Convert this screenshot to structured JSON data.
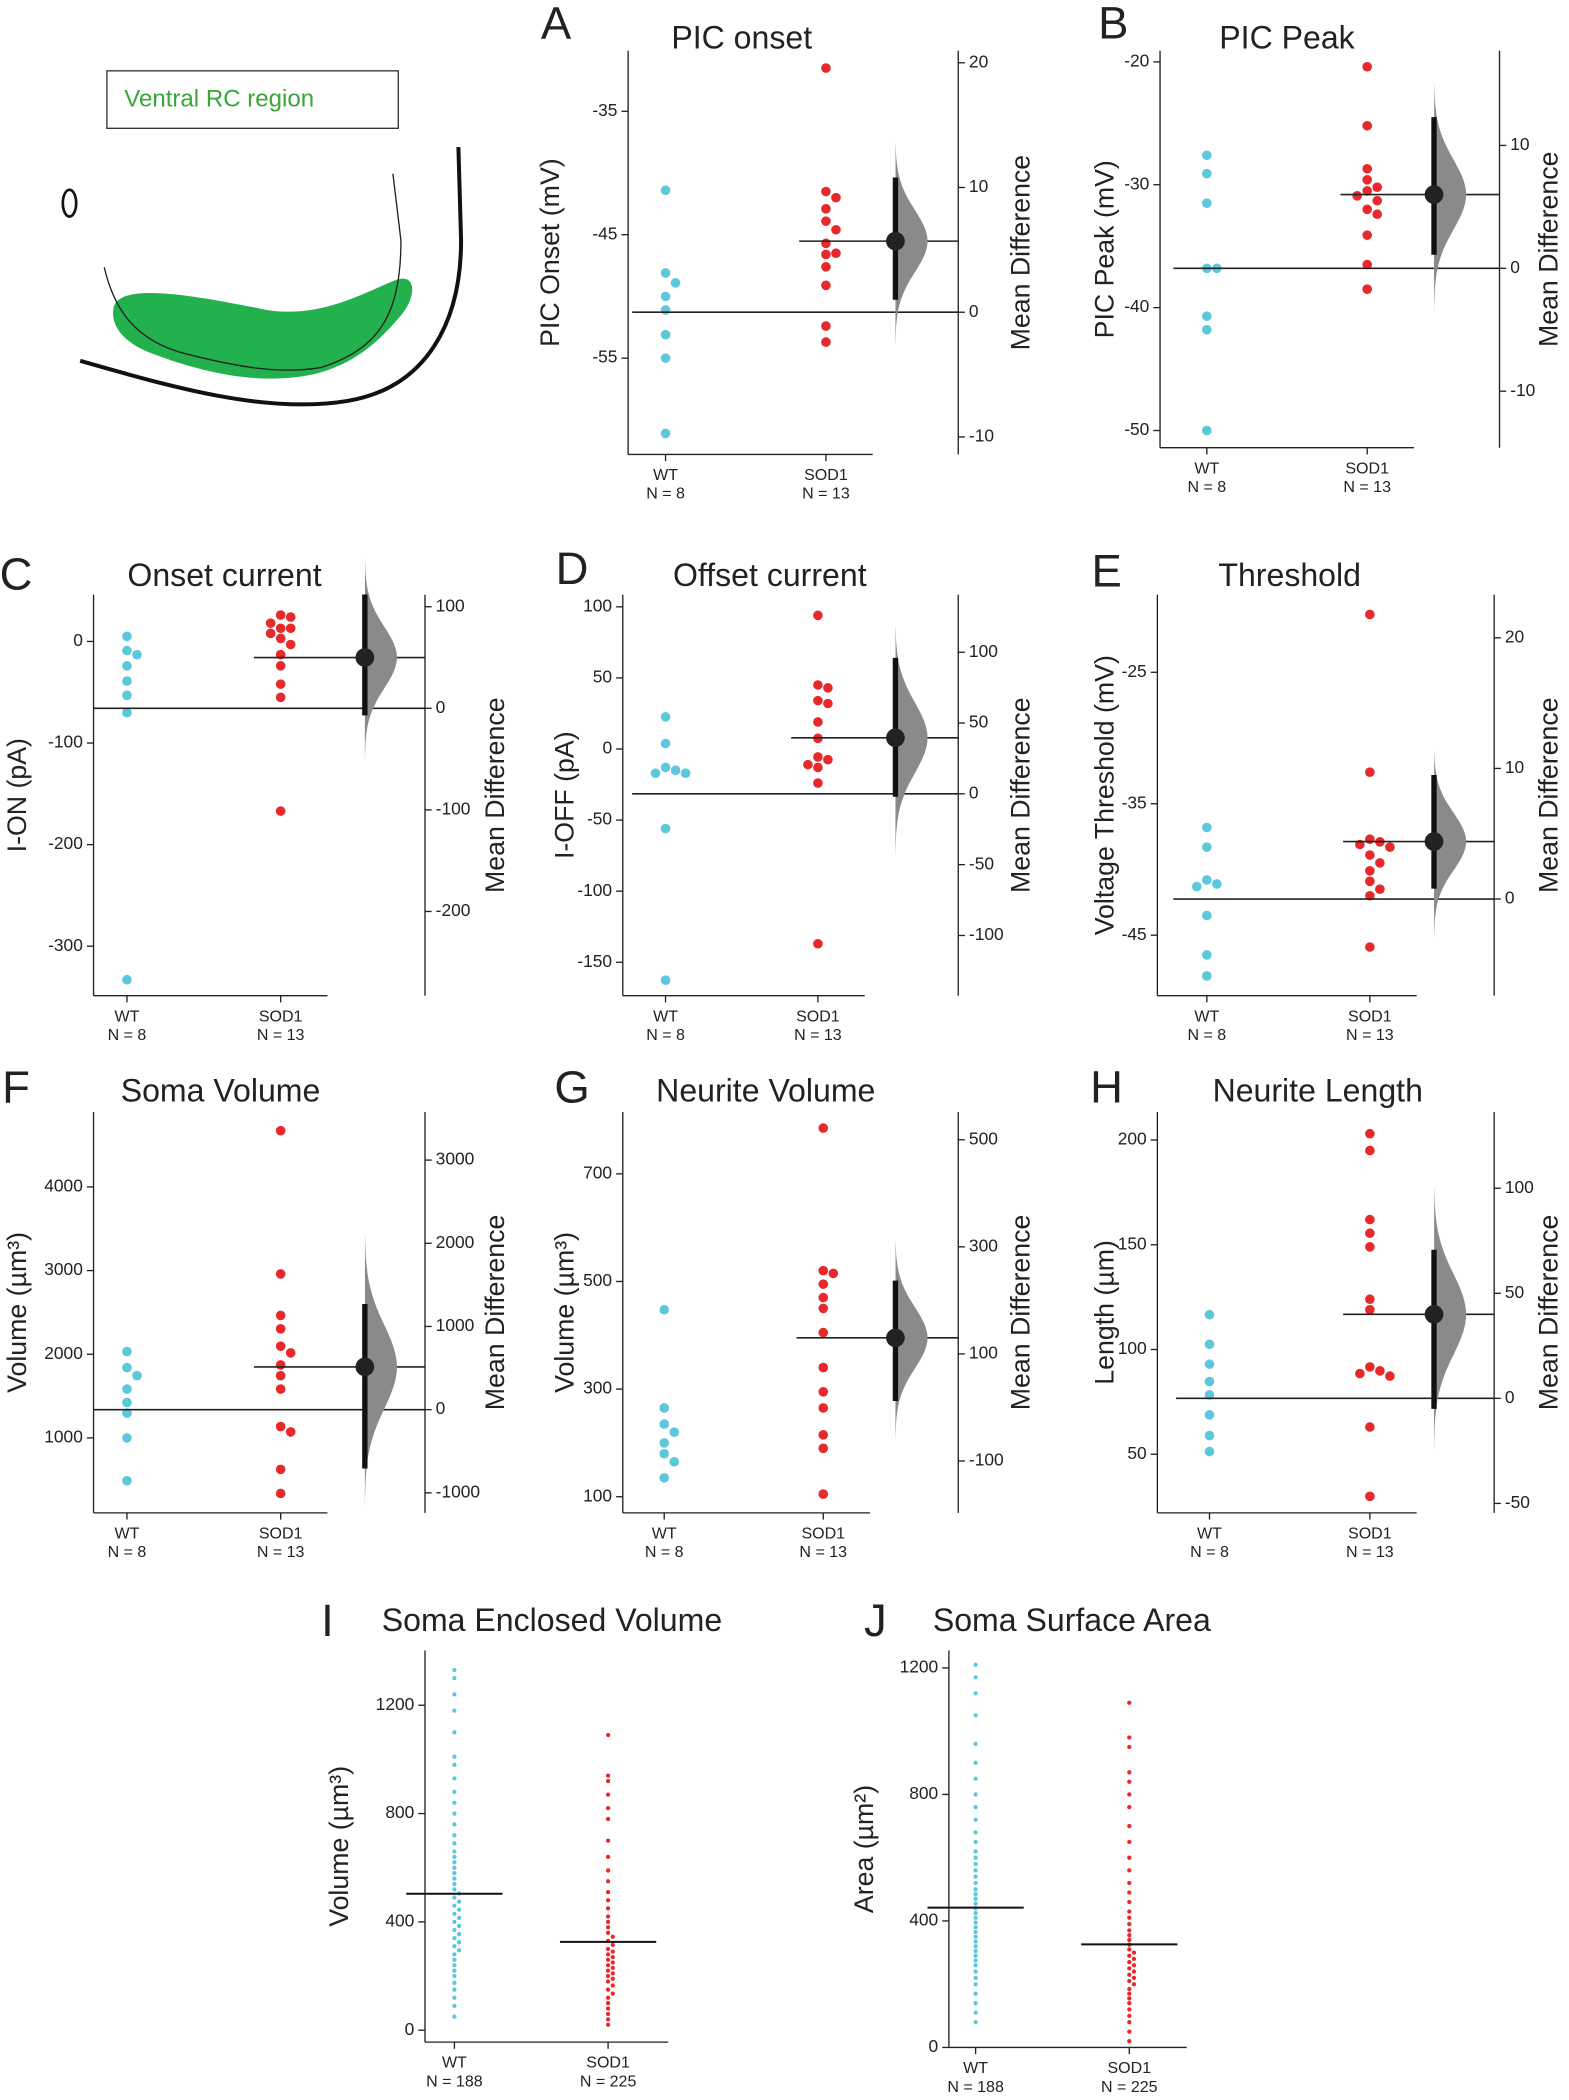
{
  "inset": {
    "label": "Ventral RC region"
  },
  "chart_data": [
    {
      "type": "estimation",
      "panel": "A",
      "title": "PIC onset",
      "y_label": "PIC Onset (mV)",
      "y2_label": "Mean Difference",
      "groups": [
        {
          "label": "WT",
          "n_label": "N = 8",
          "color": "#5bc8dc",
          "values": [
            -41.4,
            -48.1,
            -48.9,
            -50.0,
            -51.1,
            -53.1,
            -55.0,
            -61.1
          ]
        },
        {
          "label": "SOD1",
          "n_label": "N = 13",
          "color": "#e8292b",
          "values": [
            -31.5,
            -41.5,
            -42.0,
            -42.9,
            -43.9,
            -44.6,
            -45.7,
            -46.5,
            -46.6,
            -47.6,
            -49.1,
            -52.4,
            -53.7
          ]
        }
      ],
      "mean_difference": 5.7,
      "ci": [
        1.0,
        10.8
      ],
      "ylim": [
        -62.8,
        -30.1
      ],
      "yticks": [
        -55,
        -45,
        -35
      ],
      "y2lim": [
        -11.4,
        20.96
      ],
      "y2ticks": [
        -10,
        0,
        10,
        20
      ]
    },
    {
      "type": "estimation",
      "panel": "B",
      "title": "PIC Peak",
      "y_label": "PIC Peak (mV)",
      "y2_label": "Mean Difference",
      "groups": [
        {
          "label": "WT",
          "n_label": "N = 8",
          "color": "#5bc8dc",
          "values": [
            -27.6,
            -29.1,
            -31.5,
            -36.8,
            -36.8,
            -40.7,
            -41.8,
            -50.0
          ]
        },
        {
          "label": "SOD1",
          "n_label": "N = 13",
          "color": "#e8292b",
          "values": [
            -20.4,
            -25.2,
            -28.7,
            -29.6,
            -30.2,
            -30.5,
            -30.9,
            -31.3,
            -32.0,
            -32.4,
            -34.1,
            -36.5,
            -38.5
          ]
        }
      ],
      "mean_difference": 6.0,
      "ci": [
        1.1,
        12.3
      ],
      "ylim": [
        -51.4,
        -19.1
      ],
      "yticks": [
        -50,
        -40,
        -30,
        -20
      ],
      "y2lim": [
        -14.6,
        17.7
      ],
      "y2ticks": [
        -10,
        0,
        10
      ]
    },
    {
      "type": "estimation",
      "panel": "C",
      "title": "Onset current",
      "y_label": "I-ON (pA)",
      "y2_label": "Mean Difference",
      "groups": [
        {
          "label": "WT",
          "n_label": "N = 8",
          "color": "#5bc8dc",
          "values": [
            5,
            -9,
            -13,
            -24,
            -39,
            -53,
            -70,
            -333
          ]
        },
        {
          "label": "SOD1",
          "n_label": "N = 13",
          "color": "#e8292b",
          "values": [
            26,
            24,
            18,
            13,
            13,
            8,
            3,
            -3,
            -13,
            -24,
            -42,
            -55,
            -167
          ]
        }
      ],
      "mean_difference": 50,
      "ci": [
        -7,
        112
      ],
      "ylim": [
        -348.7,
        46
      ],
      "yticks": [
        -300,
        -200,
        -100,
        0
      ],
      "y2lim": [
        -282.9,
        111.8
      ],
      "y2ticks": [
        -200,
        -100,
        0,
        100
      ]
    },
    {
      "type": "estimation",
      "panel": "D",
      "title": "Offset current",
      "y_label": "I-OFF (pA)",
      "y2_label": "Mean Difference",
      "groups": [
        {
          "label": "WT",
          "n_label": "N = 8",
          "color": "#5bc8dc",
          "values": [
            22.6,
            3.8,
            -13,
            -15,
            -17,
            -17,
            -56,
            -162.6
          ]
        },
        {
          "label": "SOD1",
          "n_label": "N = 13",
          "color": "#e8292b",
          "values": [
            94,
            45,
            43,
            34,
            32,
            19,
            7.5,
            -5.6,
            -7.5,
            -11,
            -13,
            -24,
            -137
          ]
        }
      ],
      "mean_difference": 39.6,
      "ci": [
        -2,
        96
      ],
      "ylim": [
        -173.5,
        108.5
      ],
      "yticks": [
        -150,
        -100,
        -50,
        0,
        50,
        100
      ],
      "y2lim": [
        -142.5,
        140.6
      ],
      "y2ticks": [
        -100,
        -50,
        0,
        50,
        100
      ]
    },
    {
      "type": "estimation",
      "panel": "E",
      "title": "Threshold",
      "y_label": "Voltage Threshold (mV)",
      "y2_label": "Mean Difference",
      "groups": [
        {
          "label": "WT",
          "n_label": "N = 8",
          "color": "#5bc8dc",
          "values": [
            -36.8,
            -38.3,
            -40.8,
            -41.1,
            -41.3,
            -43.5,
            -46.5,
            -48.1
          ]
        },
        {
          "label": "SOD1",
          "n_label": "N = 13",
          "color": "#e8292b",
          "values": [
            -20.6,
            -32.6,
            -37.7,
            -37.9,
            -38.1,
            -38.3,
            -38.9,
            -39.5,
            -40.1,
            -40.9,
            -41.5,
            -42.0,
            -45.9
          ]
        }
      ],
      "mean_difference": 4.4,
      "ci": [
        0.8,
        9.5
      ],
      "ylim": [
        -49.6,
        -19.1
      ],
      "yticks": [
        -45,
        -35,
        -25
      ],
      "y2lim": [
        -7.4,
        23.3
      ],
      "y2ticks": [
        0,
        10,
        20
      ]
    },
    {
      "type": "estimation",
      "panel": "F",
      "title": "Soma Volume",
      "y_label": "Volume (µm³)",
      "y2_label": "Mean Difference",
      "groups": [
        {
          "label": "WT",
          "n_label": "N = 8",
          "color": "#5bc8dc",
          "values": [
            2032,
            1840,
            1744,
            1584,
            1424,
            1296,
            1000,
            488
          ]
        },
        {
          "label": "SOD1",
          "n_label": "N = 13",
          "color": "#e8292b",
          "values": [
            4672,
            2960,
            2464,
            2304,
            2096,
            2016,
            1872,
            1744,
            1584,
            1136,
            1072,
            624,
            336
          ]
        }
      ],
      "mean_difference": 514,
      "ci": [
        -707,
        1270
      ],
      "ylim": [
        104,
        4896
      ],
      "yticks": [
        1000,
        2000,
        3000,
        4000
      ],
      "y2lim": [
        -1241,
        3579
      ],
      "y2ticks": [
        -1000,
        0,
        1000,
        2000,
        3000
      ]
    },
    {
      "type": "estimation",
      "panel": "G",
      "title": "Neurite Volume",
      "y_label": "Volume (µm³)",
      "y2_label": "Mean Difference",
      "groups": [
        {
          "label": "WT",
          "n_label": "N = 8",
          "color": "#5bc8dc",
          "values": [
            447.5,
            265,
            235,
            220,
            200,
            180,
            165,
            135
          ]
        },
        {
          "label": "SOD1",
          "n_label": "N = 13",
          "color": "#e8292b",
          "values": [
            785,
            520,
            515,
            495,
            470,
            450,
            405,
            340,
            295,
            265,
            215,
            190,
            105
          ]
        }
      ],
      "mean_difference": 130,
      "ci": [
        12,
        237
      ],
      "ylim": [
        70,
        815
      ],
      "yticks": [
        100,
        300,
        500,
        700
      ],
      "y2lim": [
        -197,
        552
      ],
      "y2ticks": [
        -100,
        100,
        300,
        500
      ]
    },
    {
      "type": "estimation",
      "panel": "H",
      "title": "Neurite Length",
      "y_label": "Length (µm)",
      "y2_label": "Mean Difference",
      "groups": [
        {
          "label": "WT",
          "n_label": "N = 8",
          "color": "#5bc8dc",
          "values": [
            116.6,
            102.5,
            93,
            84.7,
            78.3,
            68.8,
            58.9,
            51.3
          ]
        },
        {
          "label": "SOD1",
          "n_label": "N = 13",
          "color": "#e8292b",
          "values": [
            203,
            195,
            162,
            155.5,
            149,
            124,
            119,
            91.7,
            89.8,
            88.5,
            87.3,
            63,
            29.9
          ]
        }
      ],
      "mean_difference": 40,
      "ci": [
        -5,
        70.7
      ],
      "ylim": [
        22,
        213.4
      ],
      "yticks": [
        50,
        100,
        150,
        200
      ],
      "y2lim": [
        -54.5,
        136.3
      ],
      "y2ticks": [
        -50,
        0,
        50,
        100
      ]
    },
    {
      "type": "swarm",
      "panel": "I",
      "title": "Soma Enclosed Volume",
      "y_label": "Volume (µm³)",
      "groups": [
        {
          "label": "WT",
          "n_label": "N = 188",
          "color": "#5bc8dc",
          "mean": 504,
          "values": [
            1330,
            1300,
            1240,
            1180,
            1100,
            1010,
            980,
            930,
            880,
            840,
            800,
            760,
            720,
            690,
            660,
            640,
            620,
            600,
            580,
            560,
            540,
            520,
            505,
            490,
            475,
            460,
            445,
            430,
            415,
            400,
            385,
            370,
            355,
            340,
            325,
            310,
            295,
            280,
            260,
            240,
            220,
            200,
            175,
            150,
            120,
            90,
            50
          ]
        },
        {
          "label": "SOD1",
          "n_label": "N = 225",
          "color": "#e8292b",
          "mean": 326,
          "values": [
            1090,
            940,
            920,
            870,
            820,
            780,
            700,
            640,
            590,
            550,
            510,
            480,
            450,
            420,
            400,
            380,
            360,
            345,
            330,
            315,
            300,
            290,
            280,
            270,
            260,
            250,
            240,
            230,
            220,
            210,
            200,
            190,
            180,
            165,
            150,
            135,
            120,
            100,
            80,
            60,
            40,
            20
          ]
        }
      ],
      "ylim": [
        -44,
        1402
      ],
      "yticks": [
        0,
        400,
        800,
        1200
      ]
    },
    {
      "type": "swarm",
      "panel": "J",
      "title": "Soma Surface Area",
      "y_label": "Area (µm²)",
      "groups": [
        {
          "label": "WT",
          "n_label": "N = 188",
          "color": "#5bc8dc",
          "mean": 442,
          "values": [
            1210,
            1170,
            1120,
            1050,
            960,
            900,
            850,
            800,
            760,
            720,
            680,
            650,
            620,
            600,
            580,
            560,
            540,
            520,
            500,
            485,
            470,
            455,
            440,
            425,
            410,
            395,
            380,
            365,
            350,
            335,
            320,
            305,
            290,
            275,
            260,
            240,
            220,
            200,
            170,
            140,
            110,
            80
          ]
        },
        {
          "label": "SOD1",
          "n_label": "N = 225",
          "color": "#e8292b",
          "mean": 326,
          "values": [
            1090,
            980,
            950,
            870,
            840,
            800,
            760,
            700,
            650,
            600,
            560,
            520,
            490,
            460,
            430,
            410,
            390,
            370,
            355,
            340,
            325,
            310,
            300,
            290,
            280,
            270,
            260,
            250,
            240,
            230,
            220,
            210,
            200,
            185,
            170,
            155,
            140,
            120,
            100,
            80,
            50,
            20
          ]
        }
      ],
      "ylim": [
        0,
        1255
      ],
      "yticks": [
        0,
        400,
        800,
        1200
      ]
    }
  ]
}
